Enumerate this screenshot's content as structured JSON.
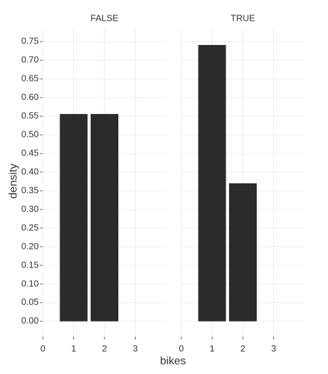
{
  "chart_data": {
    "type": "bar",
    "x_label": "bikes",
    "y_label": "density",
    "color": "#2b2b2b",
    "grid": true,
    "xlim": [
      0,
      4
    ],
    "xticks": [
      0,
      1,
      2,
      3
    ],
    "ylim": [
      -0.0375,
      0.7875
    ],
    "yticks": [
      {
        "value": 0,
        "label": "0.00"
      },
      {
        "value": 0.05,
        "label": "0.05"
      },
      {
        "value": 0.1,
        "label": "0.10"
      },
      {
        "value": 0.15,
        "label": "0.15"
      },
      {
        "value": 0.2,
        "label": "0.20"
      },
      {
        "value": 0.25,
        "label": "0.25"
      },
      {
        "value": 0.3,
        "label": "0.30"
      },
      {
        "value": 0.35,
        "label": "0.35"
      },
      {
        "value": 0.4,
        "label": "0.40"
      },
      {
        "value": 0.45,
        "label": "0.45"
      },
      {
        "value": 0.5,
        "label": "0.50"
      },
      {
        "value": 0.55,
        "label": "0.55"
      },
      {
        "value": 0.6,
        "label": "0.60"
      },
      {
        "value": 0.65,
        "label": "0.65"
      },
      {
        "value": 0.7,
        "label": "0.70"
      },
      {
        "value": 0.75,
        "label": "0.75"
      }
    ],
    "panels": [
      {
        "title": "FALSE",
        "x": [
          1,
          2
        ],
        "values": [
          0.556,
          0.556
        ]
      },
      {
        "title": "TRUE",
        "x": [
          1,
          2
        ],
        "values": [
          0.741,
          0.37
        ]
      }
    ]
  }
}
